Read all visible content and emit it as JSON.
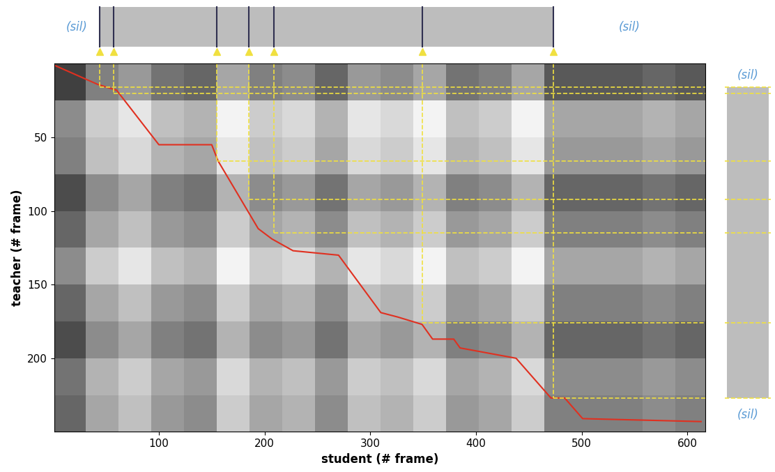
{
  "chart_data": {
    "type": "heatmap",
    "xlabel": "student (# frame)",
    "ylabel": "teacher (# frame)",
    "xlim": [
      1,
      617
    ],
    "ylim": [
      250,
      0
    ],
    "xticks": [
      100,
      200,
      300,
      400,
      500,
      600
    ],
    "yticks": [
      50,
      100,
      150,
      200
    ],
    "x_edges": [
      0,
      31,
      62,
      93,
      124,
      155,
      186,
      217,
      248,
      279,
      310,
      341,
      372,
      403,
      434,
      465,
      496,
      527,
      558,
      589,
      620
    ],
    "y_edges": [
      0,
      25,
      50,
      75,
      100,
      125,
      150,
      175,
      200,
      225,
      250
    ],
    "clim": [
      0,
      1
    ],
    "cells": [
      [
        0.25,
        0.5,
        0.6,
        0.45,
        0.4,
        0.65,
        0.5,
        0.55,
        0.4,
        0.6,
        0.55,
        0.65,
        0.45,
        0.5,
        0.65,
        0.35,
        0.35,
        0.35,
        0.4,
        0.35
      ],
      [
        0.55,
        0.8,
        0.9,
        0.75,
        0.7,
        0.95,
        0.8,
        0.85,
        0.7,
        0.9,
        0.85,
        0.95,
        0.75,
        0.8,
        0.95,
        0.65,
        0.65,
        0.65,
        0.7,
        0.65
      ],
      [
        0.5,
        0.75,
        0.85,
        0.7,
        0.65,
        0.9,
        0.75,
        0.8,
        0.65,
        0.85,
        0.8,
        0.9,
        0.7,
        0.75,
        0.9,
        0.6,
        0.6,
        0.6,
        0.65,
        0.6
      ],
      [
        0.3,
        0.55,
        0.65,
        0.5,
        0.45,
        0.7,
        0.55,
        0.6,
        0.45,
        0.65,
        0.6,
        0.7,
        0.5,
        0.55,
        0.7,
        0.4,
        0.4,
        0.4,
        0.45,
        0.4
      ],
      [
        0.4,
        0.65,
        0.75,
        0.6,
        0.55,
        0.8,
        0.65,
        0.7,
        0.55,
        0.75,
        0.7,
        0.8,
        0.6,
        0.65,
        0.8,
        0.5,
        0.5,
        0.5,
        0.55,
        0.5
      ],
      [
        0.55,
        0.8,
        0.9,
        0.75,
        0.7,
        0.95,
        0.8,
        0.85,
        0.7,
        0.9,
        0.85,
        0.95,
        0.75,
        0.8,
        0.95,
        0.65,
        0.65,
        0.65,
        0.7,
        0.65
      ],
      [
        0.4,
        0.65,
        0.75,
        0.6,
        0.55,
        0.8,
        0.65,
        0.7,
        0.55,
        0.75,
        0.7,
        0.8,
        0.6,
        0.65,
        0.8,
        0.5,
        0.5,
        0.5,
        0.55,
        0.5
      ],
      [
        0.3,
        0.55,
        0.65,
        0.5,
        0.45,
        0.7,
        0.55,
        0.6,
        0.45,
        0.65,
        0.6,
        0.7,
        0.5,
        0.55,
        0.7,
        0.4,
        0.4,
        0.4,
        0.45,
        0.4
      ],
      [
        0.45,
        0.7,
        0.8,
        0.65,
        0.6,
        0.85,
        0.7,
        0.75,
        0.6,
        0.8,
        0.75,
        0.85,
        0.65,
        0.7,
        0.85,
        0.55,
        0.55,
        0.55,
        0.6,
        0.55
      ],
      [
        0.4,
        0.65,
        0.75,
        0.6,
        0.55,
        0.8,
        0.65,
        0.7,
        0.55,
        0.75,
        0.7,
        0.8,
        0.6,
        0.65,
        0.8,
        0.5,
        0.5,
        0.5,
        0.55,
        0.5
      ]
    ],
    "path": {
      "student": [
        1,
        42,
        60,
        100,
        150,
        156,
        194,
        207,
        227,
        270,
        310,
        326,
        349,
        359,
        379,
        385,
        438,
        471,
        484,
        501,
        613
      ],
      "teacher": [
        1,
        14,
        18,
        55,
        55,
        66,
        112,
        119,
        127,
        130,
        169,
        172,
        177,
        187,
        187,
        193,
        200,
        227,
        227,
        241,
        243
      ]
    },
    "alignment": {
      "student": [
        44,
        57,
        155,
        185,
        209,
        349,
        473
      ],
      "teacher": [
        16,
        20,
        66,
        92,
        115,
        176,
        227
      ]
    },
    "top_labels": [
      "(sil)",
      "(sil)"
    ],
    "right_labels": [
      "(sil)",
      "(sil)"
    ]
  }
}
